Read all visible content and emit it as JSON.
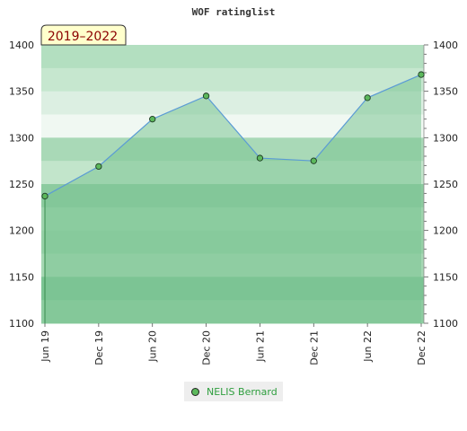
{
  "chart_data": {
    "type": "line",
    "title": "WOF ratinglist",
    "period_badge": "2019–2022",
    "x": [
      "Jun 19",
      "Dec 19",
      "Jun 20",
      "Dec 20",
      "Jun 21",
      "Dec 21",
      "Jun 22",
      "Dec 22"
    ],
    "series": [
      {
        "name": "NELIS Bernard",
        "values": [
          1237,
          1269,
          1320,
          1345,
          1278,
          1275,
          1343,
          1368
        ]
      }
    ],
    "ylim": [
      1100,
      1400
    ],
    "yticks": [
      1100,
      1150,
      1200,
      1250,
      1300,
      1350,
      1400
    ],
    "dual_y_axis": true,
    "grid": false,
    "legend_position": "bottom-center",
    "colors": {
      "line": "#5b9bd5",
      "marker": "#5cb85c",
      "fill": "#7cc494",
      "legend_text": "#2e9e3e",
      "badge_bg": "#ffffcc",
      "badge_text": "#8b0000"
    }
  }
}
